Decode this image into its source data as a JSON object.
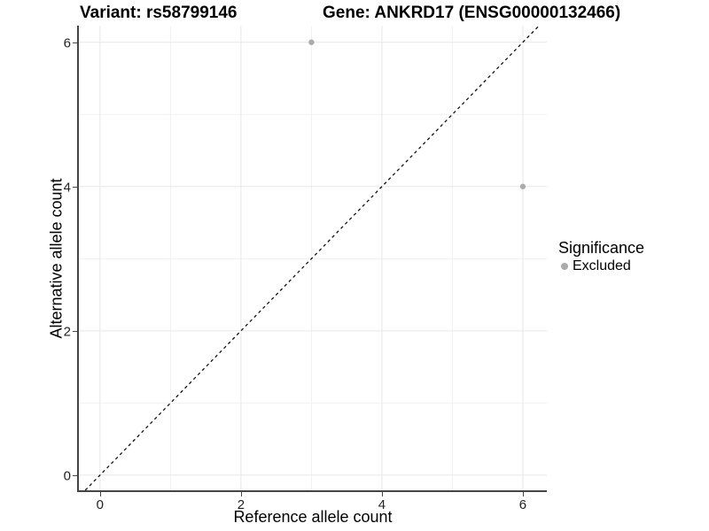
{
  "titles": {
    "variant": "Variant: rs58799146",
    "gene": "Gene: ANKRD17 (ENSG00000132466)"
  },
  "axes": {
    "x": {
      "label": "Reference allele count"
    },
    "y": {
      "label": "Alternative allele count"
    }
  },
  "legend": {
    "title": "Significance",
    "items": [
      {
        "label": "Excluded",
        "color": "#ababab"
      }
    ]
  },
  "colors": {
    "axis_line": "#454545",
    "grid_major": "#e7e7e7",
    "grid_minor": "#f1f1f1",
    "identity_line": "#111111",
    "point": "#ababab"
  },
  "chart_data": {
    "type": "scatter",
    "title": "Variant: rs58799146 | Gene: ANKRD17 (ENSG00000132466)",
    "xlabel": "Reference allele count",
    "ylabel": "Alternative allele count",
    "xlim": [
      -0.3,
      6.34
    ],
    "ylim": [
      -0.21,
      6.23
    ],
    "x_major_ticks": [
      0,
      2,
      4,
      6
    ],
    "y_major_ticks": [
      0,
      2,
      4,
      6
    ],
    "grid": {
      "major": [
        0,
        2,
        4,
        6
      ],
      "minor": [
        1,
        3,
        5
      ],
      "on": true
    },
    "reference_line": {
      "kind": "identity",
      "style": "dashed"
    },
    "legend_position": "right",
    "series": [
      {
        "name": "Excluded",
        "color": "#ababab",
        "points": [
          {
            "x": 3,
            "y": 6
          },
          {
            "x": 6,
            "y": 4
          }
        ]
      }
    ]
  }
}
